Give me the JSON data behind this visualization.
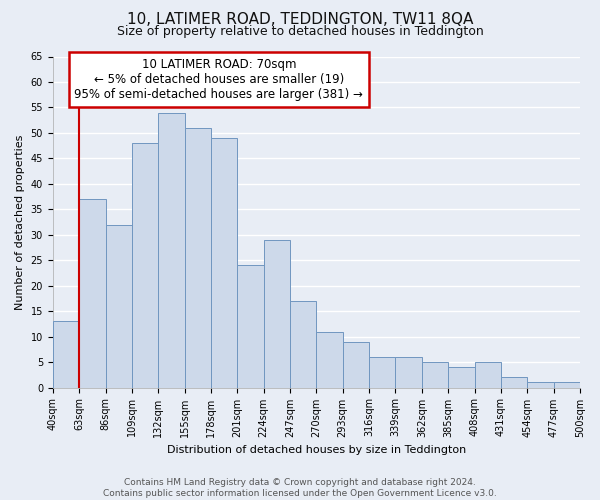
{
  "title": "10, LATIMER ROAD, TEDDINGTON, TW11 8QA",
  "subtitle": "Size of property relative to detached houses in Teddington",
  "xlabel": "Distribution of detached houses by size in Teddington",
  "ylabel": "Number of detached properties",
  "bin_labels": [
    "40sqm",
    "63sqm",
    "86sqm",
    "109sqm",
    "132sqm",
    "155sqm",
    "178sqm",
    "201sqm",
    "224sqm",
    "247sqm",
    "270sqm",
    "293sqm",
    "316sqm",
    "339sqm",
    "362sqm",
    "385sqm",
    "408sqm",
    "431sqm",
    "454sqm",
    "477sqm",
    "500sqm"
  ],
  "bar_heights": [
    13,
    37,
    32,
    48,
    54,
    51,
    49,
    24,
    29,
    17,
    11,
    9,
    6,
    6,
    5,
    4,
    5,
    2,
    1,
    1
  ],
  "bar_color": "#cdd9ea",
  "bar_edge_color": "#7096c0",
  "annotation_box_text_line1": "10 LATIMER ROAD: 70sqm",
  "annotation_box_text_line2": "← 5% of detached houses are smaller (19)",
  "annotation_box_text_line3": "95% of semi-detached houses are larger (381) →",
  "annotation_box_color": "#ffffff",
  "annotation_box_edge_color": "#cc0000",
  "vline_color": "#cc0000",
  "vline_x": 1.0,
  "ylim": [
    0,
    65
  ],
  "yticks": [
    0,
    5,
    10,
    15,
    20,
    25,
    30,
    35,
    40,
    45,
    50,
    55,
    60,
    65
  ],
  "footer_text": "Contains HM Land Registry data © Crown copyright and database right 2024.\nContains public sector information licensed under the Open Government Licence v3.0.",
  "bg_color": "#e8edf5",
  "plot_bg_color": "#e8edf5",
  "grid_color": "#ffffff",
  "title_fontsize": 11,
  "subtitle_fontsize": 9,
  "axis_label_fontsize": 8,
  "tick_fontsize": 7,
  "annotation_fontsize": 8.5,
  "footer_fontsize": 6.5
}
